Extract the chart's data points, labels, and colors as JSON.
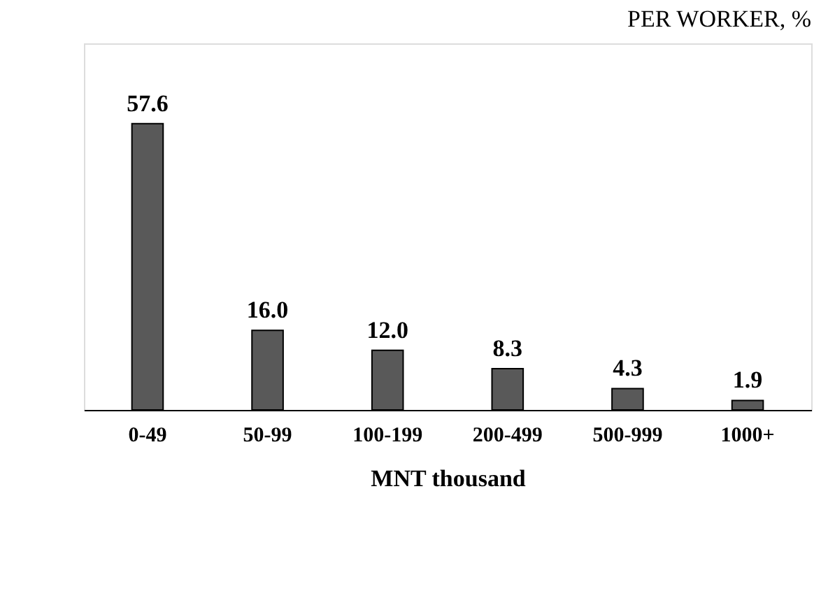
{
  "chart_data": {
    "type": "bar",
    "title": "PER WORKER, %",
    "xlabel": "MNT thousand",
    "categories": [
      "0-49",
      "50-99",
      "100-199",
      "200-499",
      "500-999",
      "1000+"
    ],
    "values": [
      57.6,
      16.0,
      12.0,
      8.3,
      4.3,
      1.9
    ],
    "value_labels": [
      "57.6",
      "16.0",
      "12.0",
      "8.3",
      "4.3",
      "1.9"
    ],
    "color": "#595959",
    "grid": false
  }
}
